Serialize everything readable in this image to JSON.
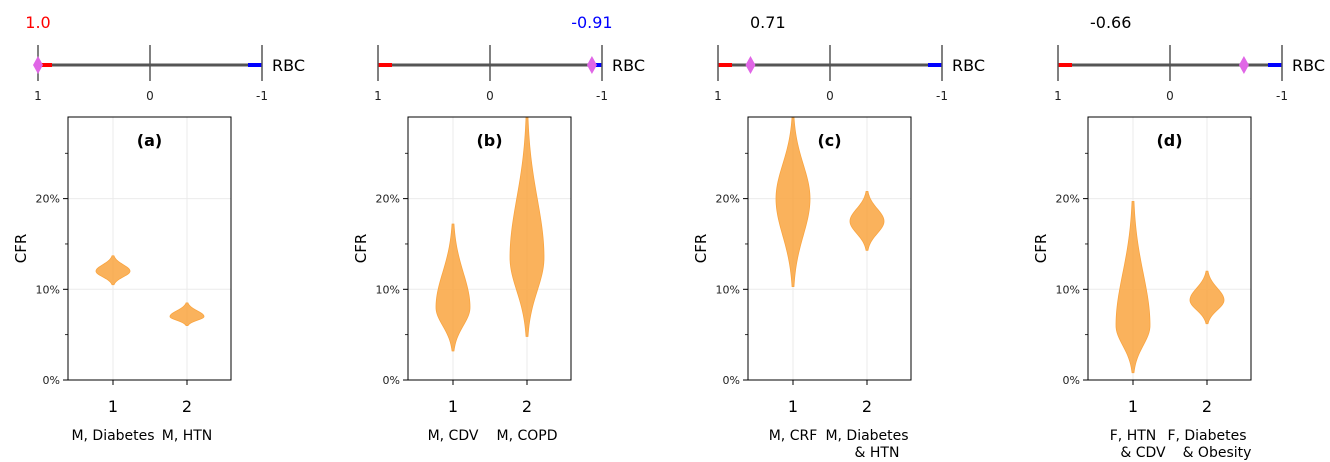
{
  "chart_data": [
    {
      "type": "violin",
      "panel_label": "(a)",
      "rbc": {
        "value": 1.0,
        "value_label": "1.0",
        "label": "RBC",
        "ticks": [
          "1",
          "0",
          "-1"
        ]
      },
      "ylabel": "CFR",
      "yticks": [
        "0%",
        "10%",
        "20%"
      ],
      "ylim": [
        0,
        0.29
      ],
      "xticks": [
        "1",
        "2"
      ],
      "xlabels": [
        [
          "M, Diabetes"
        ],
        [
          "M, HTN"
        ]
      ],
      "violins": [
        {
          "center": 0.12,
          "min": 0.105,
          "max": 0.137
        },
        {
          "center": 0.07,
          "min": 0.06,
          "max": 0.085
        }
      ]
    },
    {
      "type": "violin",
      "panel_label": "(b)",
      "rbc": {
        "value": -0.91,
        "value_label": "-0.91",
        "label": "RBC",
        "ticks": [
          "1",
          "0",
          "-1"
        ]
      },
      "ylabel": "CFR",
      "yticks": [
        "0%",
        "10%",
        "20%"
      ],
      "ylim": [
        0,
        0.29
      ],
      "xticks": [
        "1",
        "2"
      ],
      "xlabels": [
        [
          "M, CDV"
        ],
        [
          "M, COPD"
        ]
      ],
      "violins": [
        {
          "center": 0.08,
          "min": 0.032,
          "max": 0.172
        },
        {
          "center": 0.135,
          "min": 0.048,
          "max": 0.29
        }
      ]
    },
    {
      "type": "violin",
      "panel_label": "(c)",
      "rbc": {
        "value": 0.71,
        "value_label": "0.71",
        "label": "RBC",
        "ticks": [
          "1",
          "0",
          "-1"
        ]
      },
      "ylabel": "CFR",
      "yticks": [
        "0%",
        "10%",
        "20%"
      ],
      "ylim": [
        0,
        0.29
      ],
      "xticks": [
        "1",
        "2"
      ],
      "xlabels": [
        [
          "M, CRF"
        ],
        [
          "M, Diabetes",
          "& HTN"
        ]
      ],
      "violins": [
        {
          "center": 0.2,
          "min": 0.103,
          "max": 0.29
        },
        {
          "center": 0.175,
          "min": 0.143,
          "max": 0.208
        }
      ]
    },
    {
      "type": "violin",
      "panel_label": "(d)",
      "rbc": {
        "value": -0.66,
        "value_label": "-0.66",
        "label": "RBC",
        "ticks": [
          "1",
          "0",
          "-1"
        ]
      },
      "ylabel": "CFR",
      "yticks": [
        "0%",
        "10%",
        "20%"
      ],
      "ylim": [
        0,
        0.29
      ],
      "xticks": [
        "1",
        "2"
      ],
      "xlabels": [
        [
          "F, HTN",
          "& CDV"
        ],
        [
          "F, Diabetes",
          "& Obesity"
        ]
      ],
      "violins": [
        {
          "center": 0.06,
          "min": 0.008,
          "max": 0.197
        },
        {
          "center": 0.088,
          "min": 0.062,
          "max": 0.12
        }
      ]
    }
  ],
  "colors": {
    "violin": "#f9a440",
    "rbc_positive": "#ff0000",
    "rbc_negative": "#0000ff",
    "rbc_marker": "#e066e6",
    "axis_line": "#555555",
    "grid": "#ebebeb"
  }
}
